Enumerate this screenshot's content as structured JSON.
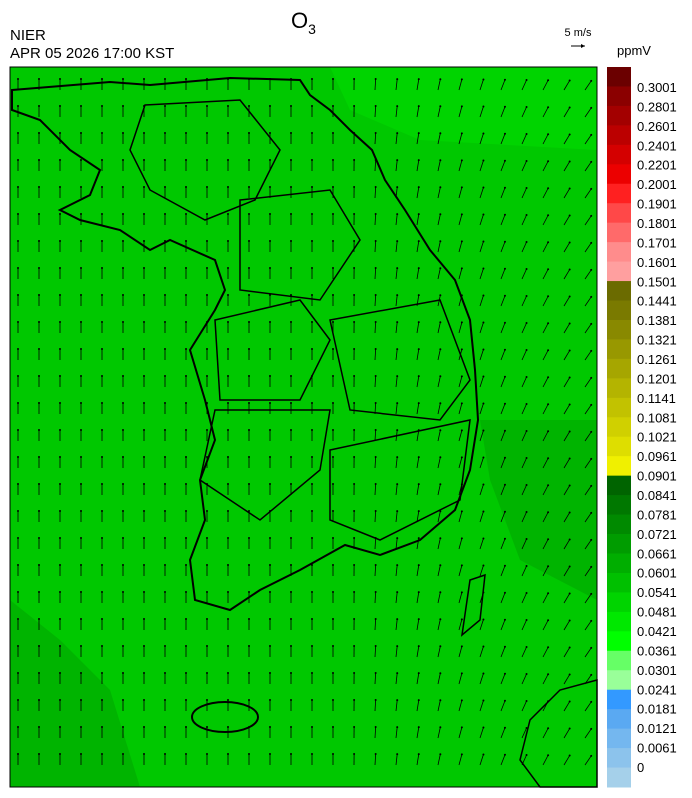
{
  "header": {
    "title": "O",
    "title_subscript": "3",
    "agency": "NIER",
    "timestamp": "APR 05 2026 17:00 KST",
    "wind_scale": "5 m/s"
  },
  "legend": {
    "unit": "ppmV",
    "labels": [
      "0.3001",
      "0.2801",
      "0.2601",
      "0.2401",
      "0.2201",
      "0.2001",
      "0.1901",
      "0.1801",
      "0.1701",
      "0.1601",
      "0.1501",
      "0.1441",
      "0.1381",
      "0.1321",
      "0.1261",
      "0.1201",
      "0.1141",
      "0.1081",
      "0.1021",
      "0.0961",
      "0.0901",
      "0.0841",
      "0.0781",
      "0.0721",
      "0.0661",
      "0.0601",
      "0.0541",
      "0.0481",
      "0.0421",
      "0.0361",
      "0.0301",
      "0.0241",
      "0.0181",
      "0.0121",
      "0.0061",
      "0"
    ]
  }
}
